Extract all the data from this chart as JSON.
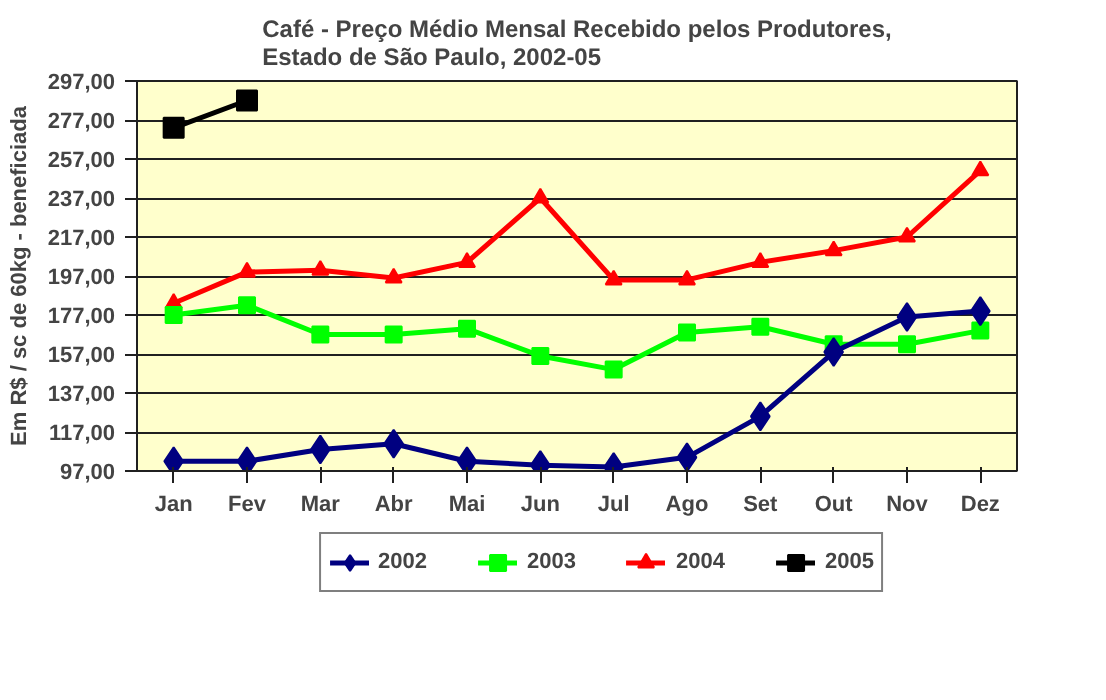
{
  "chart_data": {
    "type": "line",
    "title": "Café - Preço Médio Mensal Recebido pelos Produtores,\nEstado de São Paulo, 2002-05",
    "ylabel": "Em R$ / sc de 60kg - beneficiada",
    "categories": [
      "Jan",
      "Fev",
      "Mar",
      "Abr",
      "Mai",
      "Jun",
      "Jul",
      "Ago",
      "Set",
      "Out",
      "Nov",
      "Dez"
    ],
    "series": [
      {
        "name": "2002",
        "color": "#000080",
        "marker": "diamond",
        "values": [
          102,
          102,
          108,
          111,
          102,
          100,
          99,
          104,
          125,
          158,
          176,
          179
        ]
      },
      {
        "name": "2003",
        "color": "#00ff00",
        "marker": "square",
        "values": [
          177,
          182,
          167,
          167,
          170,
          156,
          149,
          168,
          171,
          162,
          162,
          169
        ]
      },
      {
        "name": "2004",
        "color": "#ff0000",
        "marker": "triangle",
        "values": [
          183,
          199,
          200,
          196,
          204,
          237,
          195,
          195,
          204,
          210,
          217,
          251
        ]
      },
      {
        "name": "2005",
        "color": "#000000",
        "marker": "square",
        "values": [
          273,
          287,
          null,
          null,
          null,
          null,
          null,
          null,
          null,
          null,
          null,
          null
        ]
      }
    ],
    "ylim": [
      97,
      297
    ],
    "yticks": [
      {
        "value": 97,
        "label": "97,00"
      },
      {
        "value": 117,
        "label": "117,00"
      },
      {
        "value": 137,
        "label": "137,00"
      },
      {
        "value": 157,
        "label": "157,00"
      },
      {
        "value": 177,
        "label": "177,00"
      },
      {
        "value": 197,
        "label": "197,00"
      },
      {
        "value": 217,
        "label": "217,00"
      },
      {
        "value": 237,
        "label": "237,00"
      },
      {
        "value": 257,
        "label": "257,00"
      },
      {
        "value": 277,
        "label": "277,00"
      },
      {
        "value": 297,
        "label": "297,00"
      }
    ],
    "grid": "y",
    "legend": "bottom",
    "line_style": "solid"
  }
}
